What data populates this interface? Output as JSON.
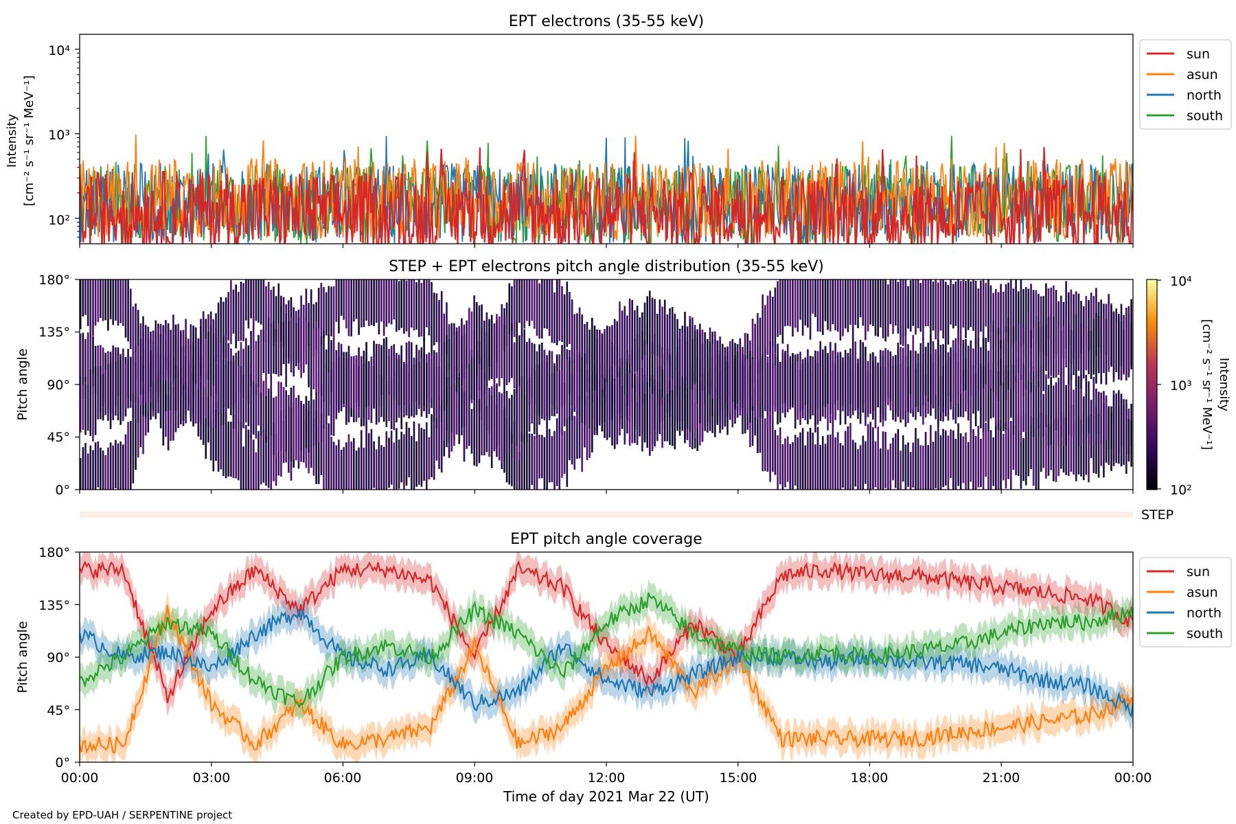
{
  "footer": "Created by EPD-UAH / SERPENTINE project",
  "xlabel": "Time of day 2021 Mar 22 (UT)",
  "x_ticks": [
    "00:00",
    "03:00",
    "06:00",
    "09:00",
    "12:00",
    "15:00",
    "18:00",
    "21:00",
    "00:00"
  ],
  "colors": {
    "sun": "#d62728",
    "asun": "#ff7f0e",
    "north": "#1f77b4",
    "south": "#2ca02c"
  },
  "panel1": {
    "title": "EPT electrons (35-55 keV)",
    "ylabel_line1": "Intensity",
    "ylabel_line2": "[cm⁻² s⁻¹ sr⁻¹ MeV⁻¹]",
    "ytick_labels": [
      "10²",
      "10³",
      "10⁴"
    ],
    "legend": [
      "sun",
      "asun",
      "north",
      "south"
    ]
  },
  "panel2": {
    "title": "STEP + EPT electrons pitch angle distribution (35-55 keV)",
    "ylabel": "Pitch angle",
    "ytick_labels": [
      "0°",
      "45°",
      "90°",
      "135°",
      "180°"
    ],
    "colorbar_label_line1": "Intensity",
    "colorbar_label_line2": "[cm⁻² s⁻¹ sr⁻¹ MeV⁻¹]",
    "colorbar_ticks": [
      "10²",
      "10³",
      "10⁴"
    ]
  },
  "step_strip": {
    "label": "STEP"
  },
  "panel3": {
    "title": "EPT pitch angle coverage",
    "ylabel": "Pitch angle",
    "ytick_labels": [
      "0°",
      "45°",
      "90°",
      "135°",
      "180°"
    ],
    "legend": [
      "sun",
      "asun",
      "north",
      "south"
    ]
  },
  "chart_data": [
    {
      "type": "line",
      "title": "EPT electrons (35-55 keV)",
      "ylabel": "Intensity [cm⁻² s⁻¹ sr⁻¹ MeV⁻¹]",
      "yscale": "log",
      "ylim": [
        50,
        15000
      ],
      "xlim": [
        "2021-03-22 00:00",
        "2021-03-23 00:00"
      ],
      "series": [
        {
          "name": "sun",
          "x_hours": [
            0,
            3,
            6,
            9,
            12,
            15,
            18,
            21,
            24
          ],
          "values": [
            120,
            125,
            115,
            120,
            115,
            120,
            110,
            115,
            110
          ]
        },
        {
          "name": "asun",
          "x_hours": [
            0,
            3,
            6,
            9,
            12,
            15,
            18,
            21,
            24
          ],
          "values": [
            170,
            175,
            170,
            165,
            160,
            165,
            170,
            175,
            170
          ]
        },
        {
          "name": "north",
          "x_hours": [
            0,
            3,
            6,
            9,
            12,
            15,
            18,
            21,
            24
          ],
          "values": [
            150,
            155,
            150,
            150,
            145,
            150,
            155,
            160,
            155
          ]
        },
        {
          "name": "south",
          "x_hours": [
            0,
            3,
            6,
            9,
            12,
            15,
            18,
            21,
            24
          ],
          "values": [
            145,
            150,
            145,
            150,
            145,
            140,
            145,
            150,
            150
          ]
        }
      ],
      "legend_position": "outside-right"
    },
    {
      "type": "heatmap",
      "title": "STEP + EPT electrons pitch angle distribution (35-55 keV)",
      "ylabel": "Pitch angle",
      "ylim": [
        0,
        180
      ],
      "colorbar": {
        "label": "Intensity [cm⁻² s⁻¹ sr⁻¹ MeV⁻¹]",
        "scale": "log",
        "range": [
          100,
          10000
        ],
        "colormap": "inferno"
      },
      "coverage_bands_from": "EPT pitch angle coverage"
    },
    {
      "type": "line",
      "title": "EPT pitch angle coverage",
      "ylabel": "Pitch angle",
      "ylim": [
        0,
        180
      ],
      "x_hours": [
        0,
        1,
        2,
        3,
        4,
        5,
        6,
        7,
        8,
        9,
        10,
        11,
        12,
        13,
        14,
        15,
        16,
        17,
        18,
        19,
        20,
        21,
        22,
        23,
        24
      ],
      "series": [
        {
          "name": "sun",
          "values": [
            165,
            165,
            55,
            130,
            165,
            130,
            165,
            165,
            155,
            90,
            165,
            150,
            100,
            70,
            120,
            90,
            160,
            165,
            160,
            160,
            155,
            150,
            145,
            140,
            120
          ]
        },
        {
          "name": "asun",
          "values": [
            15,
            15,
            130,
            50,
            15,
            50,
            15,
            20,
            30,
            100,
            15,
            30,
            80,
            110,
            60,
            90,
            20,
            20,
            20,
            20,
            25,
            30,
            35,
            40,
            55
          ]
        },
        {
          "name": "north",
          "values": [
            110,
            90,
            95,
            80,
            110,
            130,
            90,
            80,
            90,
            50,
            60,
            100,
            70,
            60,
            75,
            90,
            90,
            85,
            90,
            85,
            85,
            80,
            70,
            65,
            45
          ]
        },
        {
          "name": "south",
          "values": [
            70,
            90,
            120,
            110,
            70,
            50,
            90,
            100,
            90,
            130,
            110,
            75,
            120,
            140,
            110,
            95,
            90,
            95,
            90,
            95,
            100,
            110,
            120,
            120,
            130
          ]
        }
      ],
      "band_halfwidth_deg": 12,
      "legend_position": "outside-right"
    }
  ]
}
